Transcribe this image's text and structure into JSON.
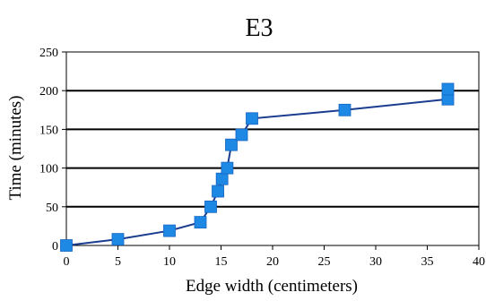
{
  "chart_data": {
    "type": "line",
    "title": "E3",
    "xlabel": "Edge width (centimeters)",
    "ylabel": "Time (minutes)",
    "xlim": [
      0,
      40
    ],
    "ylim": [
      0,
      250
    ],
    "x_ticks": [
      "0",
      "5",
      "10",
      "15",
      "20",
      "25",
      "30",
      "35",
      "40"
    ],
    "y_ticks": [
      "0",
      "50",
      "100",
      "150",
      "200",
      "250"
    ],
    "grid": "horizontal",
    "colors": {
      "line": "#1a3d8f",
      "marker": "#1e88e5",
      "grid": "#000000"
    },
    "series": [
      {
        "points": [
          {
            "x": 0,
            "y": 0
          },
          {
            "x": 5,
            "y": 8
          },
          {
            "x": 10,
            "y": 19
          },
          {
            "x": 13,
            "y": 30
          },
          {
            "x": 14,
            "y": 50
          },
          {
            "x": 14.7,
            "y": 70
          },
          {
            "x": 15.1,
            "y": 86
          },
          {
            "x": 15.6,
            "y": 100
          },
          {
            "x": 16,
            "y": 130
          },
          {
            "x": 17,
            "y": 143
          },
          {
            "x": 18,
            "y": 164
          },
          {
            "x": 27,
            "y": 175
          },
          {
            "x": 37,
            "y": 189
          },
          {
            "x": 37,
            "y": 202
          }
        ]
      }
    ]
  }
}
